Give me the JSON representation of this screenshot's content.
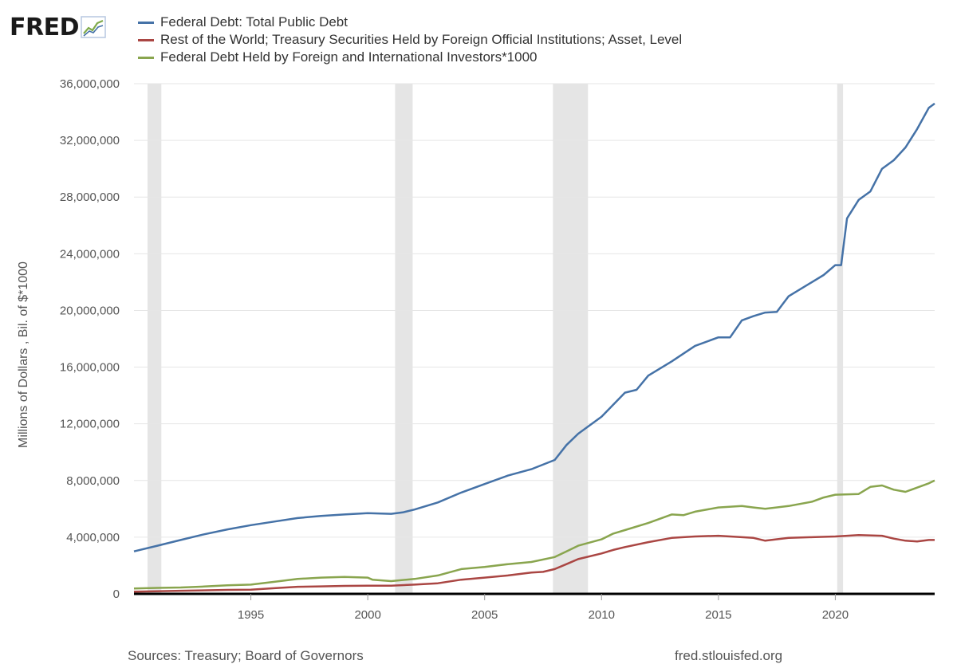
{
  "logo": {
    "text": "FRED",
    "icon": "fred-graph-icon"
  },
  "footer": {
    "sources": "Sources: Treasury; Board of Governors",
    "url": "fred.stlouisfed.org"
  },
  "chart_data": {
    "type": "line",
    "title": "",
    "xlabel": "",
    "ylabel": "Millions of Dollars , Bil. of $*1000",
    "xlim": [
      1990.0,
      2024.25
    ],
    "ylim": [
      0,
      36000000
    ],
    "yticks": [
      0,
      4000000,
      8000000,
      12000000,
      16000000,
      20000000,
      24000000,
      28000000,
      32000000,
      36000000
    ],
    "ytick_labels": [
      "0",
      "4,000,000",
      "8,000,000",
      "12,000,000",
      "16,000,000",
      "20,000,000",
      "24,000,000",
      "28,000,000",
      "32,000,000",
      "36,000,000"
    ],
    "xticks": [
      1995,
      2000,
      2005,
      2010,
      2015,
      2020
    ],
    "xtick_labels": [
      "1995",
      "2000",
      "2005",
      "2010",
      "2015",
      "2020"
    ],
    "grid": true,
    "legend": "top-left",
    "recessions": [
      [
        1990.58,
        1991.17
      ],
      [
        2001.17,
        2001.92
      ],
      [
        2007.92,
        2009.42
      ],
      [
        2020.08,
        2020.33
      ]
    ],
    "series": [
      {
        "name": "Federal Debt: Total Public Debt",
        "color": "#4572a7",
        "points": [
          [
            1990.0,
            3000000
          ],
          [
            1991.0,
            3400000
          ],
          [
            1992.0,
            3800000
          ],
          [
            1993.0,
            4200000
          ],
          [
            1994.0,
            4550000
          ],
          [
            1995.0,
            4850000
          ],
          [
            1996.0,
            5100000
          ],
          [
            1997.0,
            5350000
          ],
          [
            1998.0,
            5500000
          ],
          [
            1999.0,
            5600000
          ],
          [
            2000.0,
            5700000
          ],
          [
            2001.0,
            5650000
          ],
          [
            2001.5,
            5750000
          ],
          [
            2002.0,
            5950000
          ],
          [
            2003.0,
            6450000
          ],
          [
            2004.0,
            7150000
          ],
          [
            2005.0,
            7750000
          ],
          [
            2006.0,
            8350000
          ],
          [
            2007.0,
            8800000
          ],
          [
            2008.0,
            9450000
          ],
          [
            2008.5,
            10500000
          ],
          [
            2009.0,
            11300000
          ],
          [
            2010.0,
            12500000
          ],
          [
            2011.0,
            14200000
          ],
          [
            2011.5,
            14400000
          ],
          [
            2012.0,
            15400000
          ],
          [
            2013.0,
            16400000
          ],
          [
            2014.0,
            17500000
          ],
          [
            2015.0,
            18100000
          ],
          [
            2015.5,
            18100000
          ],
          [
            2016.0,
            19300000
          ],
          [
            2016.5,
            19600000
          ],
          [
            2017.0,
            19850000
          ],
          [
            2017.5,
            19900000
          ],
          [
            2018.0,
            21000000
          ],
          [
            2019.0,
            22000000
          ],
          [
            2019.5,
            22500000
          ],
          [
            2020.0,
            23200000
          ],
          [
            2020.25,
            23200000
          ],
          [
            2020.5,
            26500000
          ],
          [
            2021.0,
            27800000
          ],
          [
            2021.5,
            28400000
          ],
          [
            2022.0,
            30000000
          ],
          [
            2022.5,
            30600000
          ],
          [
            2023.0,
            31500000
          ],
          [
            2023.5,
            32800000
          ],
          [
            2024.0,
            34300000
          ],
          [
            2024.25,
            34600000
          ]
        ]
      },
      {
        "name": "Rest of the World; Treasury Securities Held by Foreign Official Institutions; Asset, Level",
        "color": "#aa4643",
        "points": [
          [
            1990.0,
            150000
          ],
          [
            1992.0,
            220000
          ],
          [
            1994.0,
            280000
          ],
          [
            1995.0,
            300000
          ],
          [
            1996.0,
            400000
          ],
          [
            1997.0,
            500000
          ],
          [
            1998.0,
            530000
          ],
          [
            1999.0,
            560000
          ],
          [
            2000.0,
            580000
          ],
          [
            2001.0,
            580000
          ],
          [
            2002.0,
            650000
          ],
          [
            2003.0,
            750000
          ],
          [
            2004.0,
            1000000
          ],
          [
            2005.0,
            1150000
          ],
          [
            2006.0,
            1300000
          ],
          [
            2007.0,
            1500000
          ],
          [
            2007.5,
            1550000
          ],
          [
            2008.0,
            1750000
          ],
          [
            2008.5,
            2100000
          ],
          [
            2009.0,
            2450000
          ],
          [
            2010.0,
            2850000
          ],
          [
            2010.5,
            3100000
          ],
          [
            2011.0,
            3300000
          ],
          [
            2012.0,
            3650000
          ],
          [
            2013.0,
            3950000
          ],
          [
            2014.0,
            4050000
          ],
          [
            2015.0,
            4100000
          ],
          [
            2016.0,
            4000000
          ],
          [
            2016.5,
            3950000
          ],
          [
            2017.0,
            3750000
          ],
          [
            2018.0,
            3950000
          ],
          [
            2019.0,
            4000000
          ],
          [
            2020.0,
            4050000
          ],
          [
            2021.0,
            4150000
          ],
          [
            2022.0,
            4100000
          ],
          [
            2022.5,
            3900000
          ],
          [
            2023.0,
            3750000
          ],
          [
            2023.5,
            3700000
          ],
          [
            2024.0,
            3800000
          ],
          [
            2024.25,
            3800000
          ]
        ]
      },
      {
        "name": "Federal Debt Held by Foreign and International Investors*1000",
        "color": "#89a54e",
        "points": [
          [
            1990.0,
            380000
          ],
          [
            1991.0,
            420000
          ],
          [
            1992.0,
            450000
          ],
          [
            1993.0,
            520000
          ],
          [
            1994.0,
            600000
          ],
          [
            1995.0,
            650000
          ],
          [
            1996.0,
            850000
          ],
          [
            1997.0,
            1050000
          ],
          [
            1998.0,
            1150000
          ],
          [
            1999.0,
            1200000
          ],
          [
            2000.0,
            1150000
          ],
          [
            2000.2,
            1000000
          ],
          [
            2001.0,
            900000
          ],
          [
            2002.0,
            1050000
          ],
          [
            2003.0,
            1300000
          ],
          [
            2004.0,
            1750000
          ],
          [
            2005.0,
            1900000
          ],
          [
            2006.0,
            2100000
          ],
          [
            2007.0,
            2250000
          ],
          [
            2008.0,
            2600000
          ],
          [
            2008.5,
            3000000
          ],
          [
            2009.0,
            3400000
          ],
          [
            2010.0,
            3850000
          ],
          [
            2010.5,
            4250000
          ],
          [
            2011.0,
            4500000
          ],
          [
            2012.0,
            5000000
          ],
          [
            2013.0,
            5600000
          ],
          [
            2013.5,
            5550000
          ],
          [
            2014.0,
            5800000
          ],
          [
            2015.0,
            6100000
          ],
          [
            2016.0,
            6200000
          ],
          [
            2016.5,
            6100000
          ],
          [
            2017.0,
            6000000
          ],
          [
            2018.0,
            6200000
          ],
          [
            2019.0,
            6500000
          ],
          [
            2019.5,
            6800000
          ],
          [
            2020.0,
            7000000
          ],
          [
            2021.0,
            7050000
          ],
          [
            2021.5,
            7550000
          ],
          [
            2022.0,
            7650000
          ],
          [
            2022.5,
            7350000
          ],
          [
            2023.0,
            7200000
          ],
          [
            2023.5,
            7500000
          ],
          [
            2024.0,
            7800000
          ],
          [
            2024.25,
            8000000
          ]
        ]
      }
    ]
  }
}
